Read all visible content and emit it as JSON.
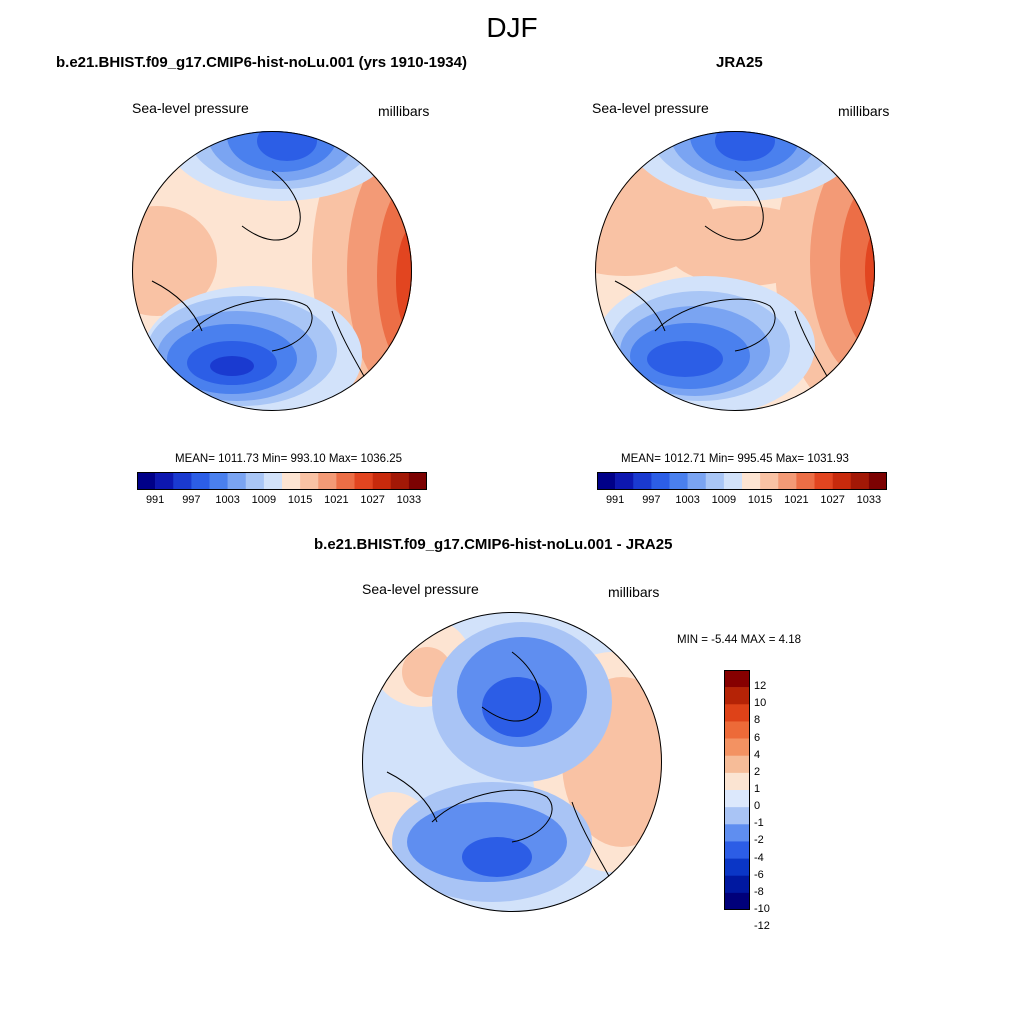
{
  "figure": {
    "title": "DJF",
    "colors": {
      "sequential": [
        "#000088",
        "#0d17b0",
        "#1a3ad0",
        "#2c5ee6",
        "#4a80ee",
        "#7aa4f2",
        "#a9c6f6",
        "#d2e2fa",
        "#fde4d2",
        "#f9c2a4",
        "#f39a76",
        "#ec6e46",
        "#e24520",
        "#c82a0c",
        "#a21806",
        "#7c0202"
      ],
      "diff": [
        "#00007a",
        "#0018a0",
        "#0a36c6",
        "#2c5de6",
        "#5f8ef0",
        "#a9c4f5",
        "#dce8fc",
        "#fbe4d2",
        "#f6bc98",
        "#f39262",
        "#ed6a38",
        "#de4218",
        "#b52306",
        "#860000"
      ],
      "coastline": "#000000"
    }
  },
  "panels": [
    {
      "id": "model",
      "title": "b.e21.BHIST.f09_g17.CMIP6-hist-noLu.001 (yrs 1910-1934)",
      "left_label": "Sea-level pressure",
      "right_label": "millibars",
      "stats": "MEAN= 1011.73  Min= 993.10  Max= 1036.25",
      "colorbar": {
        "labels": [
          "991",
          "997",
          "1003",
          "1009",
          "1015",
          "1021",
          "1027",
          "1033"
        ]
      }
    },
    {
      "id": "obs",
      "title": "JRA25",
      "left_label": "Sea-level pressure",
      "right_label": "millibars",
      "stats": "MEAN= 1012.71  Min= 995.45  Max= 1031.93",
      "colorbar": {
        "labels": [
          "991",
          "997",
          "1003",
          "1009",
          "1015",
          "1021",
          "1027",
          "1033"
        ]
      }
    },
    {
      "id": "diff",
      "title": "b.e21.BHIST.f09_g17.CMIP6-hist-noLu.001 - JRA25",
      "left_label": "Sea-level pressure",
      "right_label": "millibars",
      "stats": "MIN =  -5.44 MAX =   4.18",
      "colorbar": {
        "labels": [
          "12",
          "10",
          "8",
          "6",
          "4",
          "2",
          "1",
          "0",
          "-1",
          "-2",
          "-4",
          "-6",
          "-8",
          "-10",
          "-12"
        ]
      }
    }
  ]
}
